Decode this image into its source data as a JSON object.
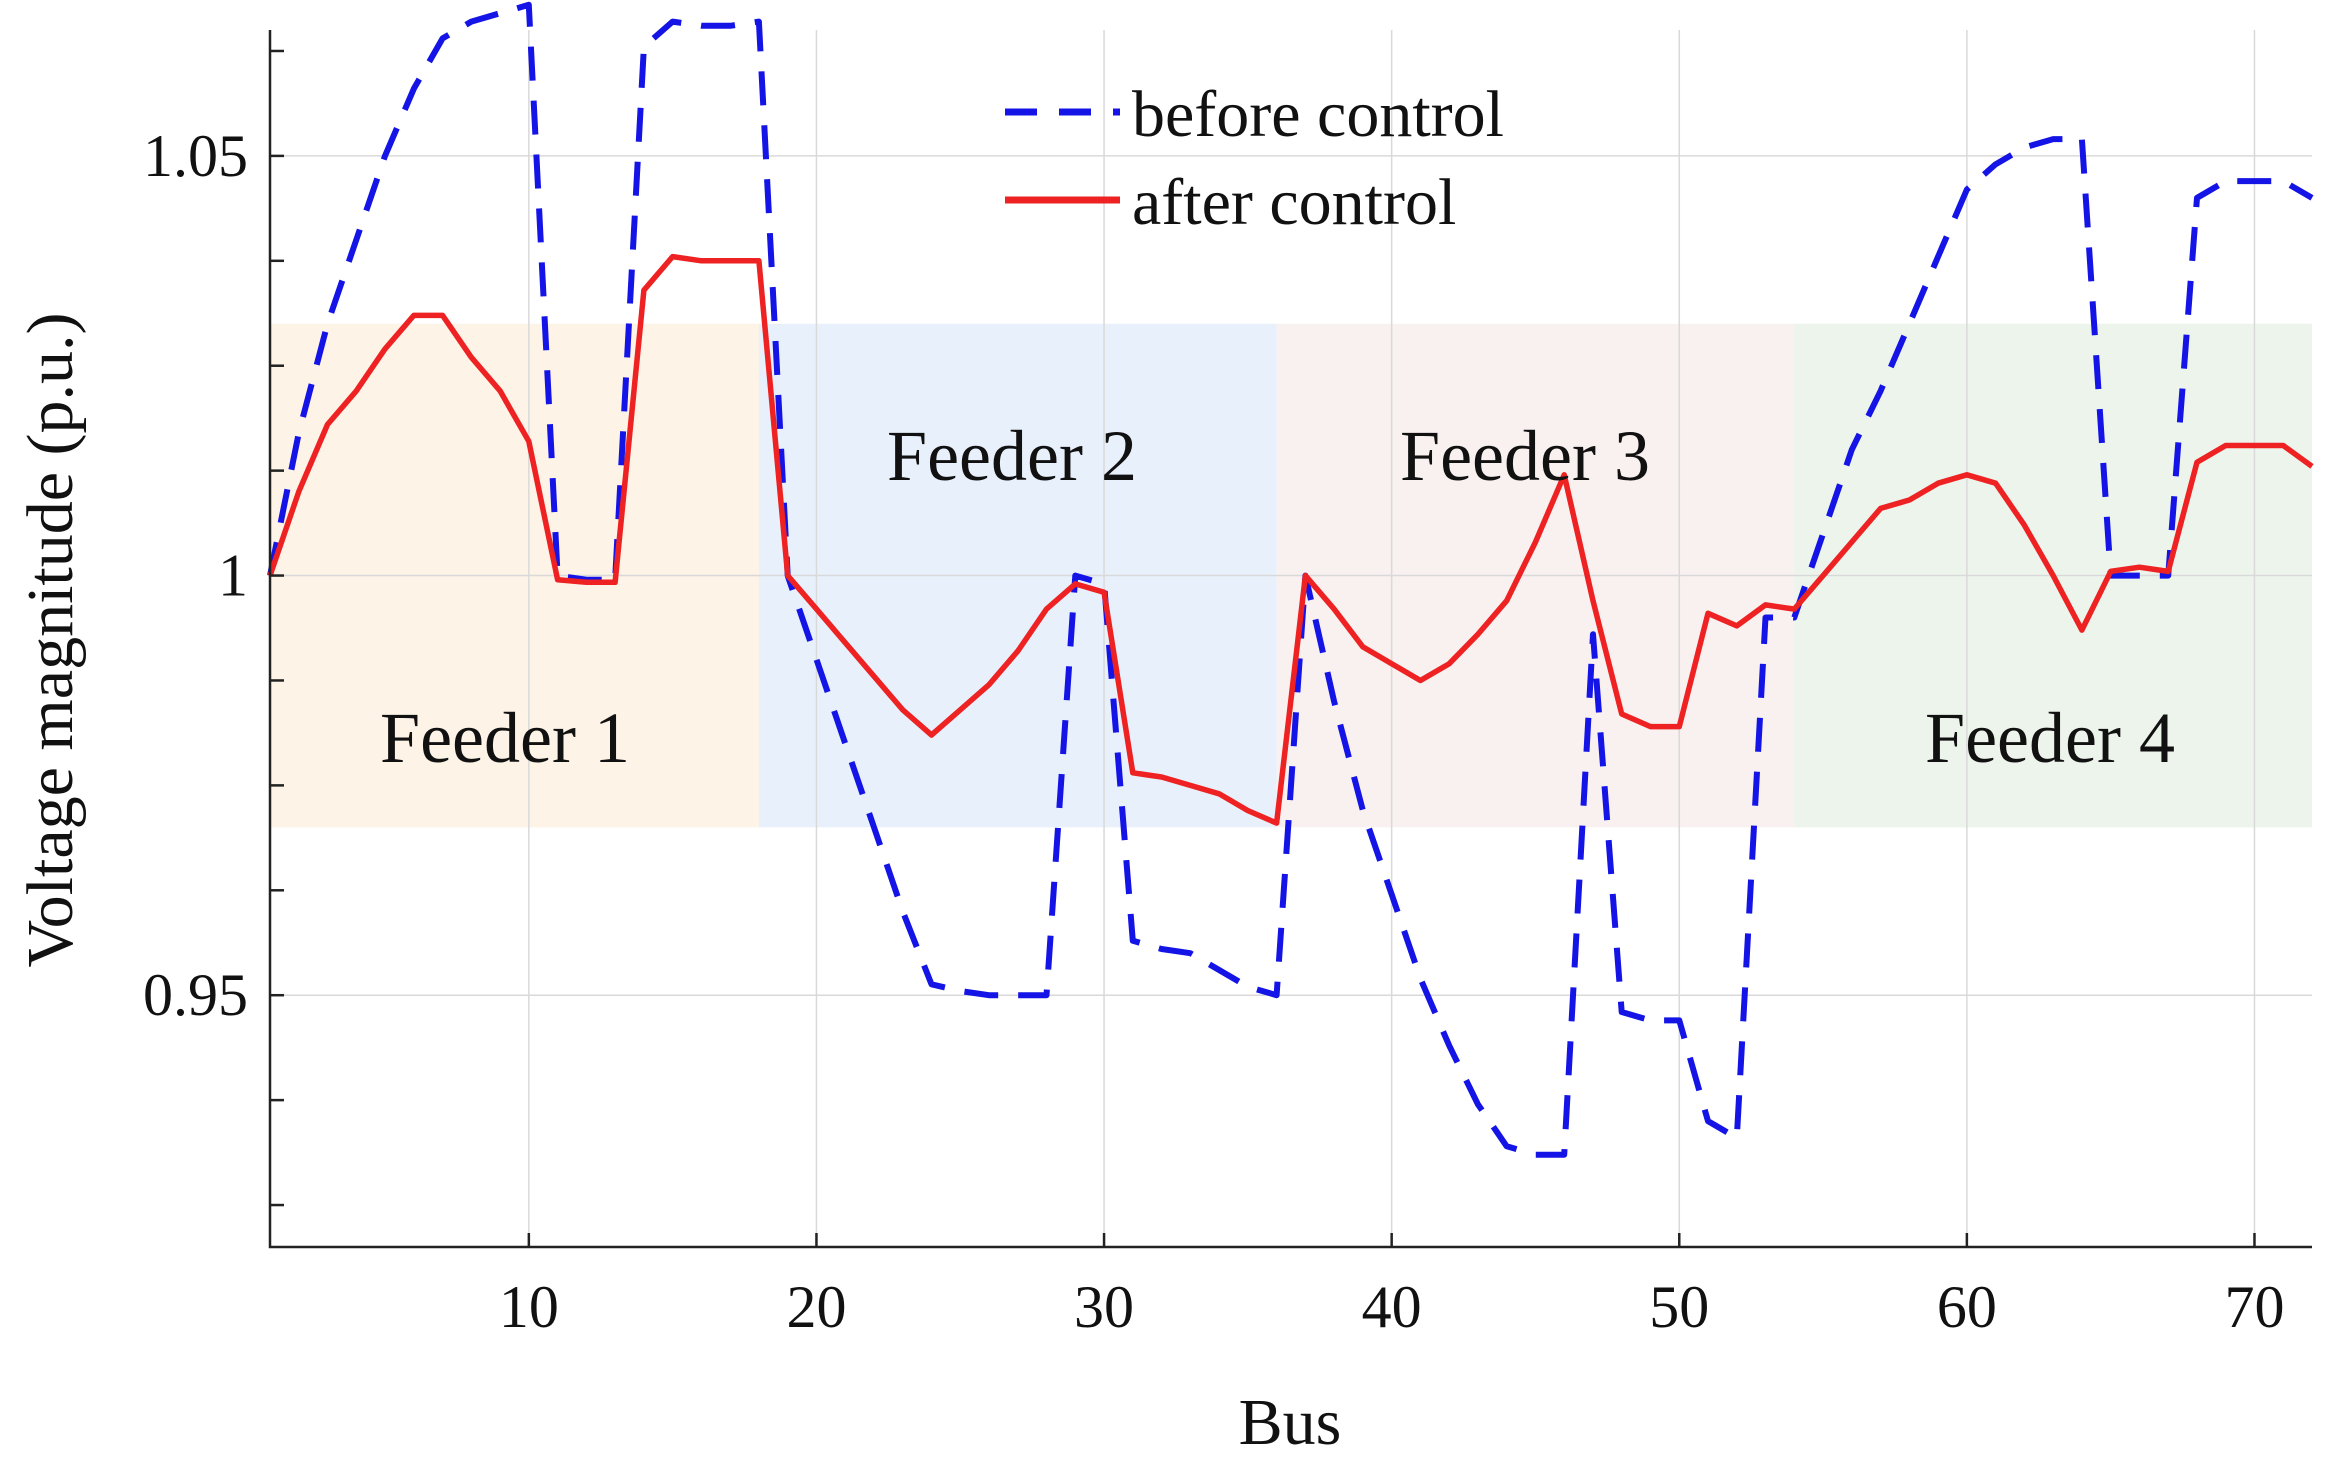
{
  "chart_data": {
    "type": "line",
    "xlabel": "Bus",
    "ylabel": "Voltage magnitude (p.u.)",
    "xlim": [
      1,
      72
    ],
    "ylim": [
      0.92,
      1.065
    ],
    "xticks": [
      10,
      20,
      30,
      40,
      50,
      60,
      70
    ],
    "xtick_labels": [
      "10",
      "20",
      "30",
      "40",
      "50",
      "60",
      "70"
    ],
    "yticks": [
      0.95,
      1.0,
      1.05
    ],
    "ytick_labels": [
      "0.95",
      "1",
      "1.05"
    ],
    "grid": true,
    "legend_position": "top-center",
    "regions": [
      {
        "name": "Feeder 1",
        "x0": 1,
        "x1": 18,
        "y0": 0.97,
        "y1": 1.03,
        "color": "#fdf3e6"
      },
      {
        "name": "Feeder 2",
        "x0": 18,
        "x1": 36,
        "y0": 0.97,
        "y1": 1.03,
        "color": "#e8f1fb"
      },
      {
        "name": "Feeder 3",
        "x0": 36,
        "x1": 54,
        "y0": 0.97,
        "y1": 1.03,
        "color": "#f9f0f0"
      },
      {
        "name": "Feeder 4",
        "x0": 54,
        "x1": 72,
        "y0": 0.97,
        "y1": 1.03,
        "color": "#edf4ec"
      }
    ],
    "series": [
      {
        "name": "before control",
        "color": "#1414e6",
        "dash": "dashed",
        "x": [
          1,
          2,
          3,
          4,
          5,
          6,
          7,
          8,
          9,
          10,
          11,
          12,
          13,
          14,
          15,
          16,
          17,
          18,
          19,
          20,
          21,
          22,
          23,
          24,
          25,
          26,
          27,
          28,
          29,
          30,
          31,
          32,
          33,
          34,
          35,
          36,
          37,
          38,
          39,
          40,
          41,
          42,
          43,
          44,
          45,
          46,
          47,
          48,
          49,
          50,
          51,
          52,
          53,
          54,
          55,
          56,
          57,
          58,
          59,
          60,
          61,
          62,
          63,
          64,
          65,
          66,
          67,
          68,
          69,
          70,
          71,
          72
        ],
        "values": [
          1.0,
          1.017,
          1.03,
          1.04,
          1.05,
          1.058,
          1.064,
          1.066,
          1.067,
          1.068,
          1.0,
          0.9995,
          0.9995,
          1.063,
          1.066,
          1.0655,
          1.0655,
          1.066,
          1.0,
          0.99,
          0.98,
          0.97,
          0.96,
          0.9513,
          0.9505,
          0.95,
          0.95,
          0.95,
          1.0,
          0.999,
          0.9565,
          0.9555,
          0.955,
          0.953,
          0.951,
          0.95,
          1.0,
          0.985,
          0.972,
          0.962,
          0.952,
          0.944,
          0.937,
          0.932,
          0.931,
          0.931,
          0.993,
          0.948,
          0.947,
          0.947,
          0.935,
          0.933,
          0.995,
          0.995,
          1.005,
          1.015,
          1.022,
          1.03,
          1.038,
          1.046,
          1.049,
          1.051,
          1.052,
          1.052,
          1.0,
          1.0,
          1.0,
          1.045,
          1.047,
          1.047,
          1.047,
          1.045
        ]
      },
      {
        "name": "after control",
        "color": "#ee2222",
        "dash": "solid",
        "x": [
          1,
          2,
          3,
          4,
          5,
          6,
          7,
          8,
          9,
          10,
          11,
          12,
          13,
          14,
          15,
          16,
          17,
          18,
          19,
          20,
          21,
          22,
          23,
          24,
          25,
          26,
          27,
          28,
          29,
          30,
          31,
          32,
          33,
          34,
          35,
          36,
          37,
          38,
          39,
          40,
          41,
          42,
          43,
          44,
          45,
          46,
          47,
          48,
          49,
          50,
          51,
          52,
          53,
          54,
          55,
          56,
          57,
          58,
          59,
          60,
          61,
          62,
          63,
          64,
          65,
          66,
          67,
          68,
          69,
          70,
          71,
          72
        ],
        "values": [
          1.0,
          1.01,
          1.018,
          1.022,
          1.027,
          1.031,
          1.031,
          1.026,
          1.022,
          1.016,
          0.9995,
          0.9992,
          0.9992,
          1.034,
          1.038,
          1.0375,
          1.0375,
          1.0375,
          1.0,
          0.996,
          0.992,
          0.988,
          0.984,
          0.981,
          0.984,
          0.987,
          0.991,
          0.996,
          0.999,
          0.998,
          0.9765,
          0.976,
          0.975,
          0.974,
          0.972,
          0.9705,
          1.0,
          0.996,
          0.9915,
          0.9895,
          0.9875,
          0.9895,
          0.993,
          0.997,
          1.004,
          1.012,
          0.997,
          0.9835,
          0.982,
          0.982,
          0.9955,
          0.994,
          0.9965,
          0.996,
          1.0,
          1.004,
          1.008,
          1.009,
          1.011,
          1.012,
          1.011,
          1.006,
          1.0,
          0.9935,
          1.0005,
          1.001,
          1.0005,
          1.0135,
          1.0155,
          1.0155,
          1.0155,
          1.013
        ]
      }
    ]
  }
}
